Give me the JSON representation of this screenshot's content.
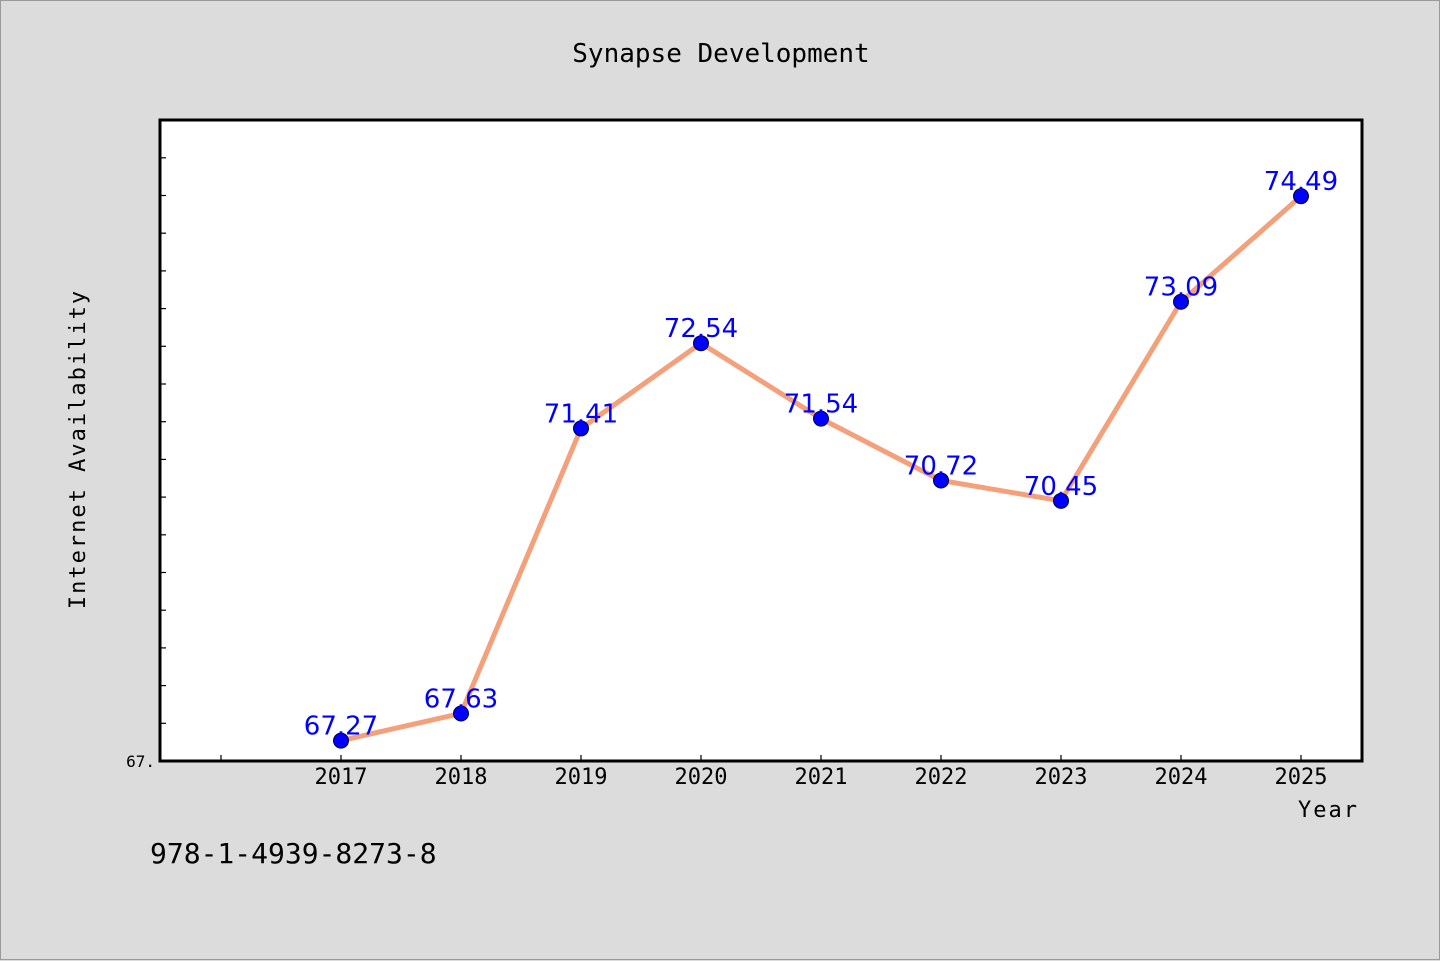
{
  "chart_data": {
    "type": "line",
    "title": "Synapse Development",
    "xlabel": "Year",
    "ylabel": "Internet Availability",
    "categories": [
      "2017",
      "2018",
      "2019",
      "2020",
      "2021",
      "2022",
      "2023",
      "2024",
      "2025"
    ],
    "series": [
      {
        "values": [
          67.27,
          67.63,
          71.41,
          72.54,
          71.54,
          70.72,
          70.45,
          73.09,
          74.49
        ],
        "line_color": "#f4a07a",
        "marker_color": "#0000ff"
      }
    ],
    "ylim": [
      67.0,
      75.5
    ],
    "ytick_labels": [
      "67."
    ],
    "grid": false,
    "data_label_color": "#0000ff"
  },
  "footer": {
    "isbn": "978-1-4939-8273-8"
  },
  "colors": {
    "background": "#dcdcdc",
    "plot_background": "#ffffff"
  }
}
